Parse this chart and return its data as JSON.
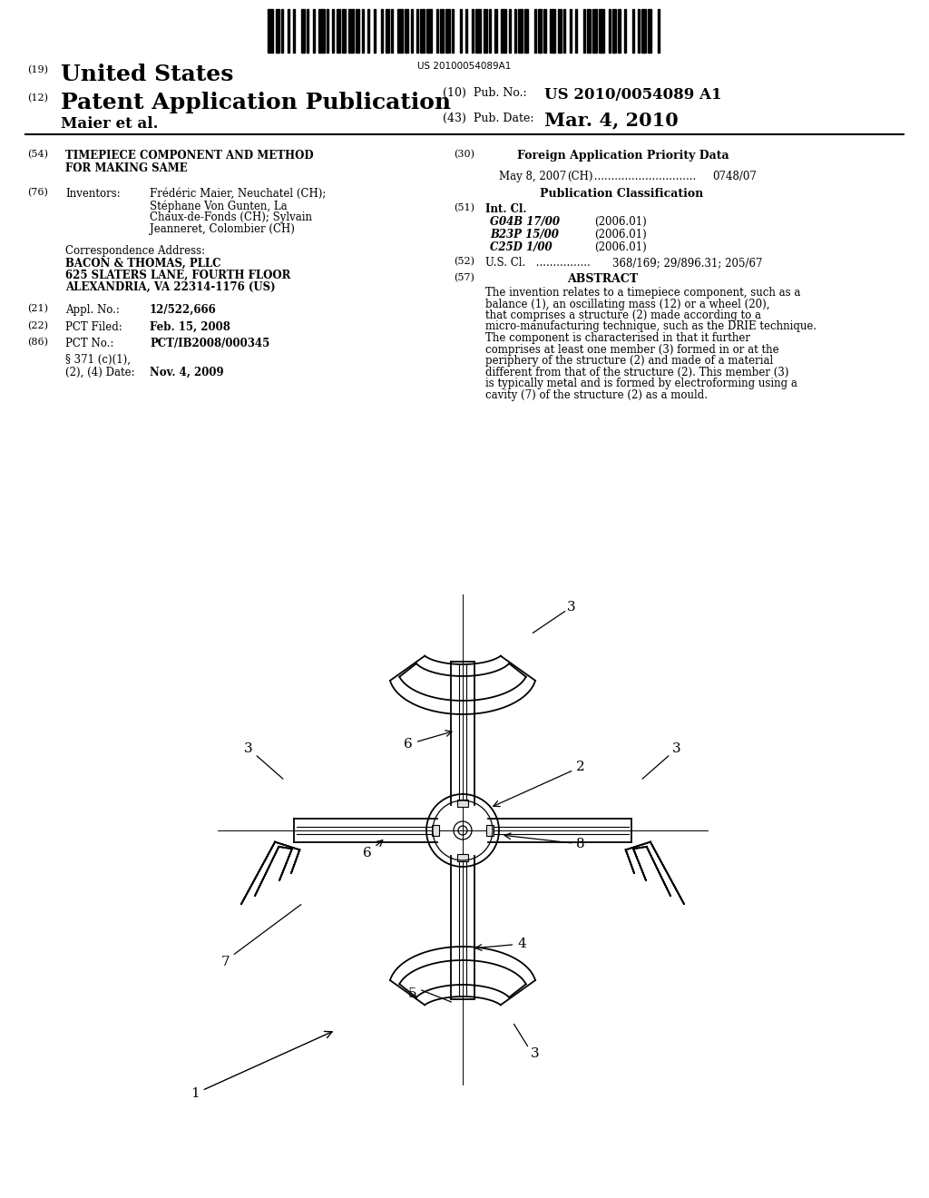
{
  "bg_color": "#ffffff",
  "barcode_text": "US 20100054089A1",
  "patent_number": "US 2010/0054089 A1",
  "pub_date": "Mar. 4, 2010",
  "title_line1": "TIMEPIECE COMPONENT AND METHOD",
  "title_line2": "FOR MAKING SAME",
  "appl_no": "12/522,666",
  "pct_filed": "Feb. 15, 2008",
  "pct_no": "PCT/IB2008/000345",
  "date_371": "Nov. 4, 2009",
  "abstract": "The invention relates to a timepiece component, such as a balance (1), an oscillating mass (12) or a wheel (20), that comprises a structure (2) made according to a micro-manufacturing technique, such as the DRIE technique. The component is characterised in that it further comprises at least one member (3) formed in or at the periphery of the structure (2) and made of a material different from that of the structure (2). This member (3) is typically metal and is formed by electroforming using a cavity (7) of the structure (2) as a mould.",
  "foreign_app_date": "May 8, 2007",
  "foreign_app_country": "(CH)",
  "foreign_app_no": "0748/07",
  "int_cls": [
    [
      "G04B 17/00",
      "(2006.01)"
    ],
    [
      "B23P 15/00",
      "(2006.01)"
    ],
    [
      "C25D 1/00",
      "(2006.01)"
    ]
  ],
  "us_cl": "368/169; 29/896.31; 205/67",
  "inv_bold": [
    "Frédéric Maier",
    "Stéphane Von Gunten",
    "Sylvain",
    "Jeanneret"
  ],
  "inv_lines": [
    "Frédéric Maier, Neuchatel (CH);",
    "Stéphane Von Gunten, La",
    "Chaux-de-Fonds (CH); Sylvain",
    "Jeanneret, Colombier (CH)"
  ]
}
